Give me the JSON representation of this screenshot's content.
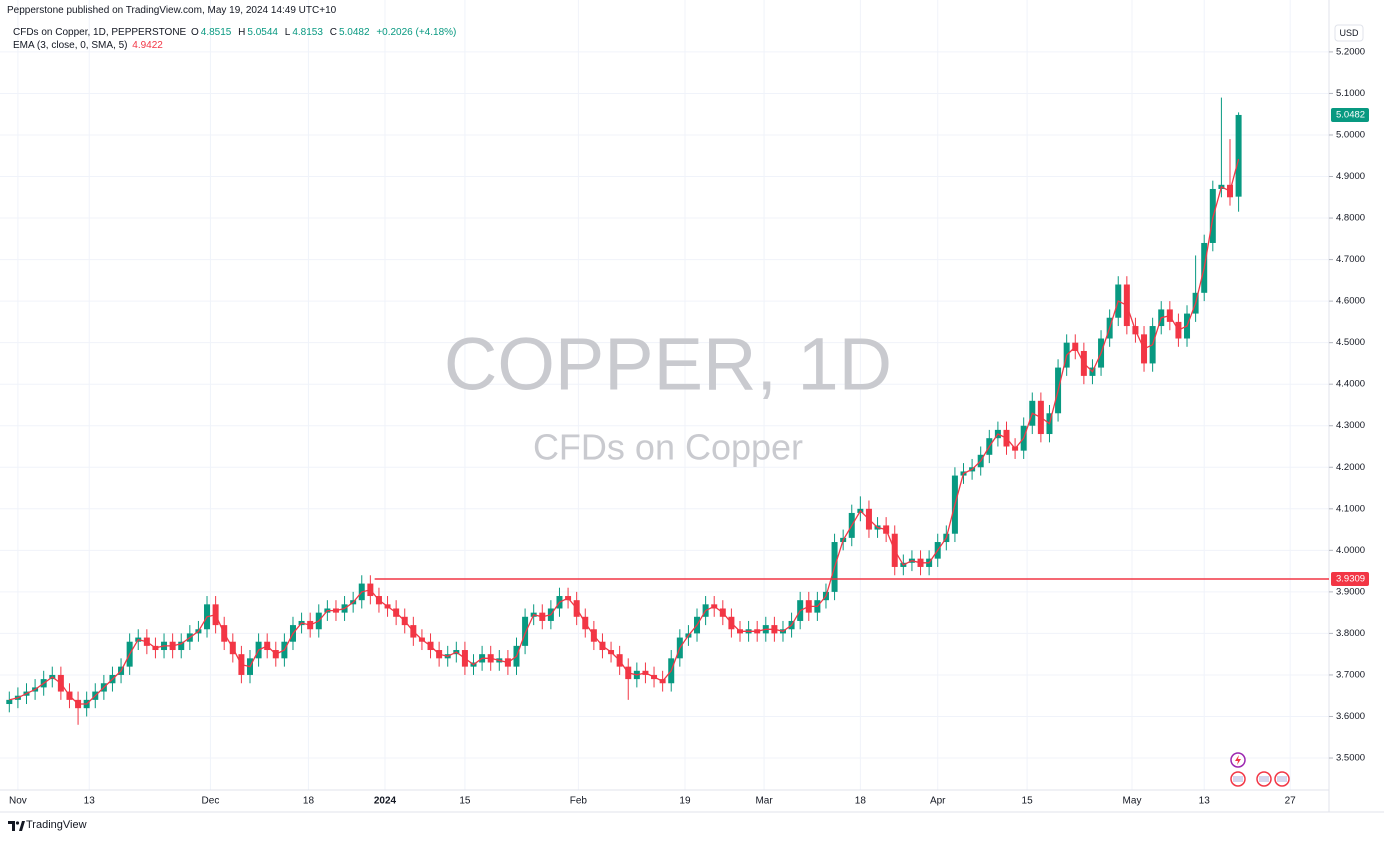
{
  "header": {
    "published": "Pepperstone published on TradingView.com, May 19, 2024 14:49 UTC+10",
    "logo": "TradingView"
  },
  "chart_data": {
    "type": "candlestick",
    "title": "COPPER, 1D",
    "subtitle": "CFDs on Copper",
    "symbol": "CFDs on Copper, 1D, PEPPERSTONE",
    "currency": "USD",
    "legend_letters": [
      "O",
      "H",
      "L",
      "C"
    ],
    "change": "+0.2026 (+4.18%)",
    "up_color": "#089981",
    "down_color": "#f23645",
    "open": [
      3.63,
      3.64,
      3.65,
      3.66,
      3.67,
      3.69,
      3.7,
      3.66,
      3.64,
      3.62,
      3.64,
      3.66,
      3.68,
      3.7,
      3.72,
      3.78,
      3.79,
      3.77,
      3.76,
      3.78,
      3.76,
      3.78,
      3.8,
      3.81,
      3.87,
      3.82,
      3.78,
      3.75,
      3.7,
      3.74,
      3.78,
      3.76,
      3.74,
      3.78,
      3.82,
      3.83,
      3.81,
      3.85,
      3.86,
      3.85,
      3.87,
      3.88,
      3.92,
      3.89,
      3.87,
      3.86,
      3.84,
      3.82,
      3.79,
      3.78,
      3.76,
      3.74,
      3.75,
      3.76,
      3.72,
      3.73,
      3.75,
      3.73,
      3.74,
      3.72,
      3.77,
      3.84,
      3.85,
      3.83,
      3.86,
      3.89,
      3.88,
      3.84,
      3.81,
      3.78,
      3.76,
      3.75,
      3.72,
      3.69,
      3.71,
      3.7,
      3.69,
      3.68,
      3.74,
      3.79,
      3.8,
      3.84,
      3.87,
      3.86,
      3.84,
      3.81,
      3.8,
      3.81,
      3.8,
      3.82,
      3.8,
      3.81,
      3.83,
      3.88,
      3.85,
      3.88,
      3.9,
      4.02,
      4.03,
      4.09,
      4.1,
      4.05,
      4.06,
      4.04,
      3.96,
      3.97,
      3.98,
      3.96,
      3.98,
      4.02,
      4.04,
      4.18,
      4.19,
      4.2,
      4.23,
      4.27,
      4.29,
      4.25,
      4.24,
      4.3,
      4.36,
      4.28,
      4.33,
      4.44,
      4.5,
      4.48,
      4.42,
      4.44,
      4.51,
      4.56,
      4.64,
      4.54,
      4.52,
      4.45,
      4.54,
      4.58,
      4.55,
      4.51,
      4.57,
      4.62,
      4.74,
      4.87,
      4.88,
      4.8515
    ],
    "high": [
      3.66,
      3.67,
      3.68,
      3.69,
      3.71,
      3.72,
      3.72,
      3.68,
      3.66,
      3.66,
      3.68,
      3.7,
      3.72,
      3.74,
      3.8,
      3.81,
      3.81,
      3.79,
      3.8,
      3.8,
      3.8,
      3.82,
      3.83,
      3.89,
      3.89,
      3.84,
      3.8,
      3.77,
      3.76,
      3.8,
      3.8,
      3.78,
      3.8,
      3.84,
      3.85,
      3.85,
      3.87,
      3.88,
      3.88,
      3.89,
      3.9,
      3.94,
      3.94,
      3.91,
      3.89,
      3.88,
      3.86,
      3.84,
      3.81,
      3.8,
      3.78,
      3.77,
      3.78,
      3.78,
      3.75,
      3.77,
      3.77,
      3.76,
      3.76,
      3.79,
      3.86,
      3.87,
      3.87,
      3.88,
      3.91,
      3.91,
      3.9,
      3.86,
      3.83,
      3.8,
      3.78,
      3.77,
      3.74,
      3.73,
      3.73,
      3.72,
      3.71,
      3.76,
      3.81,
      3.82,
      3.86,
      3.89,
      3.89,
      3.88,
      3.86,
      3.83,
      3.83,
      3.83,
      3.84,
      3.84,
      3.83,
      3.85,
      3.9,
      3.9,
      3.9,
      3.92,
      4.04,
      4.05,
      4.11,
      4.13,
      4.12,
      4.08,
      4.08,
      4.06,
      3.99,
      4.0,
      4.0,
      4.0,
      4.04,
      4.06,
      4.2,
      4.21,
      4.22,
      4.25,
      4.29,
      4.31,
      4.31,
      4.27,
      4.32,
      4.38,
      4.38,
      4.35,
      4.46,
      4.52,
      4.52,
      4.5,
      4.46,
      4.53,
      4.58,
      4.66,
      4.66,
      4.56,
      4.54,
      4.56,
      4.6,
      4.6,
      4.57,
      4.59,
      4.71,
      4.76,
      4.89,
      5.09,
      4.99,
      5.0544
    ],
    "low": [
      3.61,
      3.62,
      3.63,
      3.64,
      3.65,
      3.67,
      3.64,
      3.62,
      3.58,
      3.6,
      3.62,
      3.64,
      3.66,
      3.68,
      3.7,
      3.76,
      3.75,
      3.74,
      3.74,
      3.74,
      3.74,
      3.76,
      3.78,
      3.79,
      3.8,
      3.76,
      3.73,
      3.68,
      3.68,
      3.72,
      3.74,
      3.72,
      3.72,
      3.76,
      3.8,
      3.79,
      3.79,
      3.83,
      3.83,
      3.83,
      3.85,
      3.86,
      3.87,
      3.85,
      3.84,
      3.82,
      3.8,
      3.77,
      3.76,
      3.74,
      3.72,
      3.72,
      3.73,
      3.7,
      3.7,
      3.71,
      3.71,
      3.71,
      3.7,
      3.7,
      3.75,
      3.82,
      3.81,
      3.81,
      3.84,
      3.86,
      3.82,
      3.79,
      3.76,
      3.74,
      3.73,
      3.7,
      3.64,
      3.67,
      3.68,
      3.67,
      3.66,
      3.66,
      3.72,
      3.77,
      3.78,
      3.82,
      3.84,
      3.82,
      3.79,
      3.78,
      3.78,
      3.78,
      3.78,
      3.78,
      3.78,
      3.79,
      3.81,
      3.83,
      3.83,
      3.86,
      3.88,
      4.0,
      4.01,
      4.07,
      4.03,
      4.03,
      4.02,
      3.94,
      3.94,
      3.95,
      3.94,
      3.94,
      3.96,
      4.0,
      4.02,
      4.16,
      4.17,
      4.18,
      4.21,
      4.25,
      4.23,
      4.22,
      4.22,
      4.28,
      4.26,
      4.26,
      4.31,
      4.42,
      4.46,
      4.4,
      4.4,
      4.42,
      4.49,
      4.54,
      4.52,
      4.5,
      4.43,
      4.43,
      4.52,
      4.53,
      4.49,
      4.49,
      4.55,
      4.6,
      4.72,
      4.85,
      4.83,
      4.8153
    ],
    "close": [
      3.64,
      3.65,
      3.66,
      3.67,
      3.69,
      3.7,
      3.66,
      3.64,
      3.62,
      3.64,
      3.66,
      3.68,
      3.7,
      3.72,
      3.78,
      3.79,
      3.77,
      3.76,
      3.78,
      3.76,
      3.78,
      3.8,
      3.81,
      3.87,
      3.82,
      3.78,
      3.75,
      3.7,
      3.74,
      3.78,
      3.76,
      3.74,
      3.78,
      3.82,
      3.83,
      3.81,
      3.85,
      3.86,
      3.85,
      3.87,
      3.88,
      3.92,
      3.89,
      3.87,
      3.86,
      3.84,
      3.82,
      3.79,
      3.78,
      3.76,
      3.74,
      3.75,
      3.76,
      3.72,
      3.73,
      3.75,
      3.73,
      3.74,
      3.72,
      3.77,
      3.84,
      3.85,
      3.83,
      3.86,
      3.89,
      3.88,
      3.84,
      3.81,
      3.78,
      3.76,
      3.75,
      3.72,
      3.69,
      3.71,
      3.7,
      3.69,
      3.68,
      3.74,
      3.79,
      3.8,
      3.84,
      3.87,
      3.86,
      3.84,
      3.81,
      3.8,
      3.81,
      3.8,
      3.82,
      3.8,
      3.81,
      3.83,
      3.88,
      3.85,
      3.88,
      3.9,
      4.02,
      4.03,
      4.09,
      4.1,
      4.05,
      4.06,
      4.04,
      3.96,
      3.97,
      3.98,
      3.96,
      3.98,
      4.02,
      4.04,
      4.18,
      4.19,
      4.2,
      4.23,
      4.27,
      4.29,
      4.25,
      4.24,
      4.3,
      4.36,
      4.28,
      4.33,
      4.44,
      4.5,
      4.48,
      4.42,
      4.44,
      4.51,
      4.56,
      4.64,
      4.54,
      4.52,
      4.45,
      4.54,
      4.58,
      4.55,
      4.51,
      4.57,
      4.62,
      4.74,
      4.87,
      4.88,
      4.85,
      5.0482
    ],
    "series": [
      {
        "name": "EMA (3, close, 0, SMA, 5)",
        "color": "#f23645",
        "values": [
          3.64,
          3.645,
          3.655,
          3.665,
          3.68,
          3.695,
          3.68,
          3.65,
          3.63,
          3.63,
          3.65,
          3.67,
          3.69,
          3.71,
          3.75,
          3.785,
          3.78,
          3.765,
          3.77,
          3.77,
          3.775,
          3.79,
          3.805,
          3.84,
          3.845,
          3.8,
          3.765,
          3.725,
          3.72,
          3.76,
          3.77,
          3.75,
          3.76,
          3.8,
          3.825,
          3.82,
          3.83,
          3.855,
          3.855,
          3.86,
          3.875,
          3.9,
          3.905,
          3.88,
          3.865,
          3.85,
          3.83,
          3.805,
          3.785,
          3.77,
          3.75,
          3.745,
          3.755,
          3.74,
          3.725,
          3.74,
          3.74,
          3.735,
          3.73,
          3.745,
          3.8,
          3.845,
          3.84,
          3.845,
          3.875,
          3.885,
          3.86,
          3.825,
          3.795,
          3.77,
          3.755,
          3.735,
          3.705,
          3.7,
          3.705,
          3.695,
          3.685,
          3.71,
          3.765,
          3.795,
          3.82,
          3.855,
          3.865,
          3.85,
          3.825,
          3.805,
          3.805,
          3.805,
          3.81,
          3.81,
          3.805,
          3.82,
          3.855,
          3.865,
          3.865,
          3.89,
          3.96,
          4.025,
          4.06,
          4.095,
          4.075,
          4.055,
          4.05,
          4.0,
          3.965,
          3.975,
          3.97,
          3.97,
          4.0,
          4.03,
          4.11,
          4.185,
          4.195,
          4.215,
          4.25,
          4.28,
          4.27,
          4.245,
          4.27,
          4.33,
          4.32,
          4.305,
          4.385,
          4.47,
          4.49,
          4.45,
          4.43,
          4.475,
          4.535,
          4.6,
          4.59,
          4.53,
          4.485,
          4.495,
          4.56,
          4.565,
          4.53,
          4.54,
          4.595,
          4.68,
          4.8,
          4.875,
          4.865,
          4.9422
        ]
      }
    ],
    "hline": {
      "value": 3.9309,
      "color": "#f23645"
    },
    "xlim": [
      -0.5,
      153.4
    ],
    "xticks": [
      {
        "value": 1,
        "label": "Nov"
      },
      {
        "value": 9.3,
        "label": "13"
      },
      {
        "value": 23.4,
        "label": "Dec"
      },
      {
        "value": 34.8,
        "label": "18"
      },
      {
        "value": 43.7,
        "label": "2024"
      },
      {
        "value": 53,
        "label": "15"
      },
      {
        "value": 66.2,
        "label": "Feb"
      },
      {
        "value": 78.6,
        "label": "19"
      },
      {
        "value": 87.8,
        "label": "Mar"
      },
      {
        "value": 99,
        "label": "18"
      },
      {
        "value": 108,
        "label": "Apr"
      },
      {
        "value": 118.4,
        "label": "15"
      },
      {
        "value": 130.6,
        "label": "May"
      },
      {
        "value": 139,
        "label": "13"
      },
      {
        "value": 149,
        "label": "27"
      }
    ],
    "ylim": [
      3.423,
      5.272
    ],
    "yticks": [
      {
        "value": 3.5,
        "label": "3.5000"
      },
      {
        "value": 3.6,
        "label": "3.6000"
      },
      {
        "value": 3.7,
        "label": "3.7000"
      },
      {
        "value": 3.8,
        "label": "3.8000"
      },
      {
        "value": 3.9,
        "label": "3.9000"
      },
      {
        "value": 4.0,
        "label": "4.0000"
      },
      {
        "value": 4.1,
        "label": "4.1000"
      },
      {
        "value": 4.2,
        "label": "4.2000"
      },
      {
        "value": 4.3,
        "label": "4.3000"
      },
      {
        "value": 4.4,
        "label": "4.4000"
      },
      {
        "value": 4.5,
        "label": "4.5000"
      },
      {
        "value": 4.6,
        "label": "4.6000"
      },
      {
        "value": 4.7,
        "label": "4.7000"
      },
      {
        "value": 4.8,
        "label": "4.8000"
      },
      {
        "value": 4.9,
        "label": "4.9000"
      },
      {
        "value": 5.0,
        "label": "5.0000"
      },
      {
        "value": 5.1,
        "label": "5.1000"
      },
      {
        "value": 5.2,
        "label": "5.2000"
      }
    ],
    "grid": true
  }
}
